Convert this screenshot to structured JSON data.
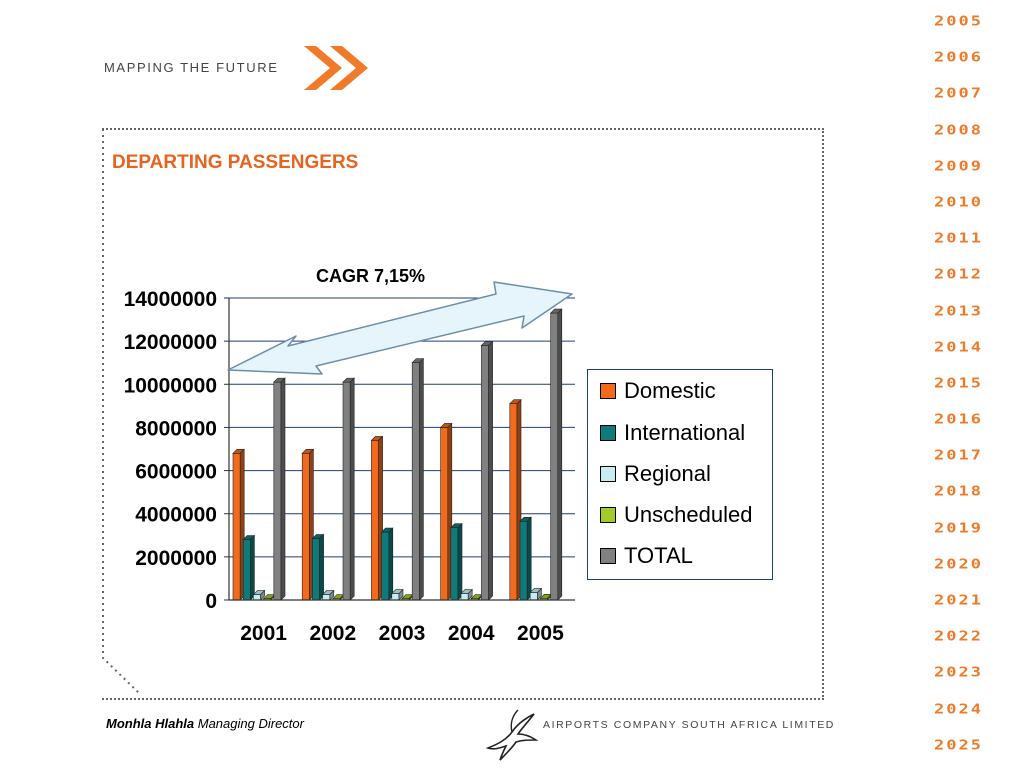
{
  "header": {
    "tagline": "MAPPING THE FUTURE"
  },
  "slide": {
    "title": "DEPARTING PASSENGERS",
    "annotation": "CAGR 7,15%"
  },
  "timeline": {
    "years": [
      "2005",
      "2006",
      "2007",
      "2008",
      "2009",
      "2010",
      "2011",
      "2012",
      "2013",
      "2014",
      "2015",
      "2016",
      "2017",
      "2018",
      "2019",
      "2020",
      "2021",
      "2022",
      "2023",
      "2024",
      "2025"
    ]
  },
  "footer": {
    "name": "Monhla Hlahla",
    "role": "Managing Director",
    "company": "AIRPORTS COMPANY SOUTH AFRICA LIMITED"
  },
  "colors": {
    "accent": "#e8641e",
    "timeline": "#f07a28",
    "gridline": "#1f3d7a"
  },
  "chart_data": {
    "type": "bar",
    "categories": [
      "2001",
      "2002",
      "2003",
      "2004",
      "2005"
    ],
    "series": [
      {
        "name": "Domestic",
        "color": "#f26b1d",
        "values": [
          6800000,
          6800000,
          7400000,
          8000000,
          9100000
        ]
      },
      {
        "name": "International",
        "color": "#0f7a7a",
        "values": [
          2800000,
          2850000,
          3150000,
          3350000,
          3650000
        ]
      },
      {
        "name": "Regional",
        "color": "#c6eef2",
        "values": [
          250000,
          250000,
          300000,
          300000,
          350000
        ]
      },
      {
        "name": "Unscheduled",
        "color": "#a3cc2a",
        "values": [
          60000,
          60000,
          70000,
          70000,
          80000
        ]
      },
      {
        "name": "TOTAL",
        "color": "#808080",
        "values": [
          10100000,
          10100000,
          11000000,
          11800000,
          13300000
        ]
      }
    ],
    "yticks": [
      "0",
      "2000000",
      "4000000",
      "6000000",
      "8000000",
      "10000000",
      "12000000",
      "14000000"
    ],
    "ylim": [
      0,
      14000000
    ],
    "grid": true,
    "legend": "right"
  }
}
